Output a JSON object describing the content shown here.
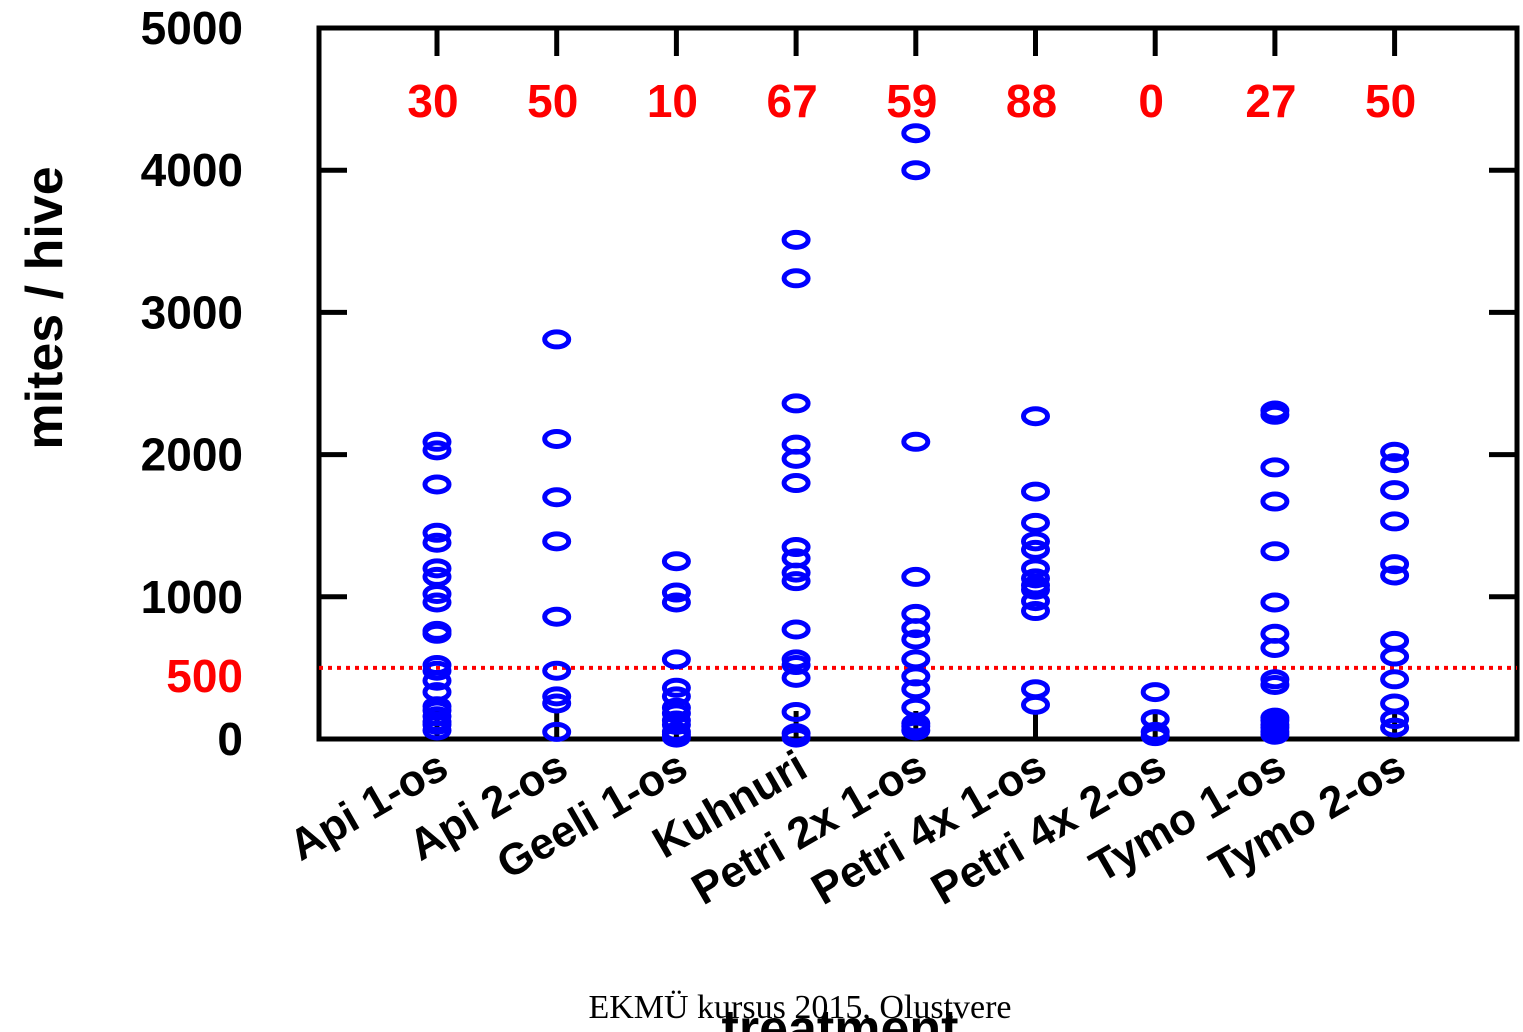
{
  "chart_data": {
    "type": "scatter",
    "title": "",
    "xlabel": "treatment",
    "ylabel": "mites / hive",
    "ylim": [
      0,
      5000
    ],
    "yticks": [
      0,
      1000,
      2000,
      3000,
      4000,
      5000
    ],
    "grid": false,
    "legend": "none",
    "categories": [
      "Api 1-os",
      "Api 2-os",
      "Geeli 1-os",
      "Kuhnuri",
      "Petri 2x 1-os",
      "Petri 4x 1-os",
      "Petri 4x 2-os",
      "Tymo 1-os",
      "Tymo 2-os"
    ],
    "counts": [
      "30",
      "50",
      "10",
      "67",
      "59",
      "88",
      "0",
      "27",
      "50"
    ],
    "reference_line": {
      "value": 500,
      "label": "500",
      "color": "#ff0000",
      "style": "dotted"
    },
    "marker_color": "#0000ff",
    "points": [
      [
        60,
        100,
        120,
        160,
        200,
        230,
        330,
        410,
        480,
        520,
        740,
        760,
        960,
        1020,
        1140,
        1200,
        1380,
        1450,
        1790,
        2030,
        2090
      ],
      [
        50,
        250,
        300,
        480,
        860,
        1390,
        1700,
        2110,
        2810
      ],
      [
        10,
        30,
        50,
        100,
        130,
        180,
        220,
        300,
        360,
        560,
        960,
        1030,
        1250
      ],
      [
        10,
        40,
        190,
        430,
        520,
        560,
        770,
        1110,
        1170,
        1270,
        1350,
        1800,
        1970,
        2070,
        2360,
        3240,
        3510
      ],
      [
        60,
        90,
        110,
        220,
        350,
        440,
        560,
        700,
        780,
        880,
        1140,
        2090,
        4000,
        4260
      ],
      [
        240,
        350,
        900,
        970,
        1050,
        1080,
        1130,
        1200,
        1330,
        1390,
        1520,
        1740,
        2270
      ],
      [
        20,
        50,
        140,
        330
      ],
      [
        30,
        50,
        80,
        100,
        130,
        150,
        380,
        420,
        640,
        740,
        960,
        1320,
        1670,
        1910,
        2280,
        2310
      ],
      [
        80,
        140,
        250,
        420,
        580,
        690,
        1150,
        1230,
        1530,
        1750,
        1940,
        2020
      ]
    ]
  },
  "footer": "EKMÜ kursus 2015, Olustvere"
}
